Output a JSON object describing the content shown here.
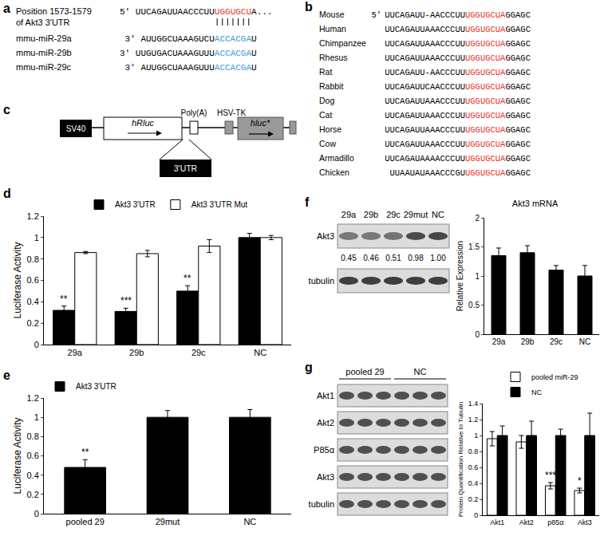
{
  "chart_data": [
    {
      "panel": "d",
      "type": "bar",
      "categories": [
        "29a",
        "29b",
        "29c",
        "NC"
      ],
      "series": [
        {
          "name": "Akt3 3'UTR",
          "color": "#000000",
          "values": [
            0.32,
            0.31,
            0.5,
            1.0
          ],
          "errors": [
            0.04,
            0.03,
            0.05,
            0.04
          ]
        },
        {
          "name": "Akt3 3'UTR Mut",
          "color": "#ffffff",
          "values": [
            0.86,
            0.85,
            0.92,
            1.0
          ],
          "errors": [
            0.01,
            0.03,
            0.06,
            0.02
          ]
        }
      ],
      "y_label": "Luciferase Activity",
      "ylim": [
        0,
        1.2
      ],
      "yticks": [
        0,
        0.2,
        0.4,
        0.6,
        0.8,
        1,
        1.2
      ],
      "grid": false,
      "legend": "top",
      "annotations": [
        {
          "category": "29a",
          "series": "Akt3 3'UTR",
          "text": "**"
        },
        {
          "category": "29b",
          "series": "Akt3 3'UTR",
          "text": "***"
        },
        {
          "category": "29c",
          "series": "Akt3 3'UTR",
          "text": "**"
        }
      ]
    },
    {
      "panel": "e",
      "type": "bar",
      "categories": [
        "pooled 29",
        "29mut",
        "NC"
      ],
      "series": [
        {
          "name": "Akt3 3'UTR",
          "color": "#000000",
          "values": [
            0.48,
            1.0,
            1.0
          ],
          "errors": [
            0.08,
            0.07,
            0.08
          ]
        }
      ],
      "y_label": "Luciferase Activity",
      "ylim": [
        0,
        1.2
      ],
      "yticks": [
        0,
        0.2,
        0.4,
        0.6,
        0.8,
        1,
        1.2
      ],
      "grid": false,
      "legend": "top left",
      "annotations": [
        {
          "category": "pooled 29",
          "series": "Akt3 3'UTR",
          "text": "**"
        }
      ]
    },
    {
      "type": "bar",
      "title": "Akt3 mRNA",
      "categories": [
        "29a",
        "29b",
        "29c",
        "NC"
      ],
      "color": "#000000",
      "values": [
        1.35,
        1.4,
        1.1,
        1.0
      ],
      "errors": [
        0.13,
        0.12,
        0.08,
        0.18
      ],
      "y_label": "Relative Expression",
      "ylim": [
        0,
        2
      ],
      "yticks": [
        0,
        0.5,
        1,
        1.5,
        2
      ],
      "grid": false
    },
    {
      "type": "bar",
      "categories": [
        "Akt1",
        "Akt2",
        "p85α",
        "Akt3"
      ],
      "series": [
        {
          "name": "pooled miR-29",
          "color": "#ffffff",
          "values": [
            0.96,
            0.92,
            0.37,
            0.31
          ],
          "errors": [
            0.09,
            0.08,
            0.04,
            0.03
          ]
        },
        {
          "name": "NC",
          "color": "#000000",
          "values": [
            1.0,
            1.0,
            1.0,
            1.0
          ],
          "errors": [
            0.12,
            0.18,
            0.08,
            0.28
          ]
        }
      ],
      "y_label": "Protein Quantification Relative to Tubulin",
      "ylim": [
        0,
        1.4
      ],
      "yticks": [
        0,
        0.2,
        0.4,
        0.6,
        0.8,
        1,
        1.2,
        1.4
      ],
      "grid": false,
      "legend": "top",
      "annotations": [
        {
          "category": "p85α",
          "series": "pooled miR-29",
          "text": "***"
        },
        {
          "category": "Akt3",
          "series": "pooled miR-29",
          "text": "*"
        }
      ]
    }
  ],
  "diagrams": {
    "a": {
      "panel": "a",
      "label": [
        "Position 1573-1579",
        "of Akt3 3'UTR"
      ],
      "target": {
        "left": "5' UUCAGAUUAACCCUU",
        "site": "UGGUGCU",
        "right": "A..."
      },
      "mirnas": [
        {
          "name": "mmu-miR-29a",
          "left": "3' AUUGGCUAAAGUCU",
          "site": "ACCACGA",
          "right": "U"
        },
        {
          "name": "mmu-miR-29b",
          "left": "3' UUGUGACUAAAGUUU",
          "site": "ACCACGA",
          "right": "U"
        },
        {
          "name": "mmu-miR-29c",
          "left": "3' AUUGGCUAAAGUUU",
          "site": "ACCACGA",
          "right": "U"
        }
      ]
    },
    "b": {
      "panel": "b",
      "rows": [
        {
          "species": "Mouse",
          "prefix": "5'",
          "left": "UUCAGAUU-AACCCUU",
          "site": "UGGUGCUA",
          "right": "GGAGC"
        },
        {
          "species": "Human",
          "left": "UUCAGAUUAAACCCUU",
          "site": "UGGUGCUA",
          "right": "GGAGC"
        },
        {
          "species": "Chimpanzee",
          "left": "UUCAGAUUAAACCCUU",
          "site": "UGGUGCUA",
          "right": "GGAGC"
        },
        {
          "species": "Rhesus",
          "left": "UUCAGAUUAAACCCUU",
          "site": "UGGUGCUA",
          "right": "GGAGC"
        },
        {
          "species": "Rat",
          "left": "UUCAGAUU-AACCCUU",
          "site": "UGGUGCUA",
          "right": "GGAGC"
        },
        {
          "species": "Rabbit",
          "left": "UUCAGAUUCAACCCUU",
          "site": "UGGUGCUA",
          "right": "GGAGC"
        },
        {
          "species": "Dog",
          "left": "UUCAGAUUAAACCCUU",
          "site": "UGGUGCUA",
          "right": "GGAGC"
        },
        {
          "species": "Cat",
          "left": "UUCAGAUUAAACCCUU",
          "site": "UGGUGCUA",
          "right": "GGAGC"
        },
        {
          "species": "Horse",
          "left": "UUCAGAUUAAACCCUU",
          "site": "UGGUGCUA",
          "right": "GGAGC"
        },
        {
          "species": "Cow",
          "left": "UUCAGAUUAAACCCUU",
          "site": "UGGUGCUA",
          "right": "GGAGC"
        },
        {
          "species": "Armadillo",
          "left": "UUCAGAUAAAACCCUU",
          "site": "UGGUGCUA",
          "right": "GGAGC"
        },
        {
          "species": "Chicken",
          "left": "UUAAUAUAAACCCGU",
          "site": "UGGUGCUA",
          "right": "GGAGC"
        }
      ]
    },
    "c": {
      "panel": "c",
      "labels": [
        "SV40",
        "hRluc",
        "Poly(A)",
        "HSV-TK",
        "hluc*"
      ],
      "insert": "3'UTR"
    }
  },
  "blots": [
    {
      "panel": "f",
      "lanes": [
        "29a",
        "29b",
        "29c",
        "29mut",
        "NC"
      ],
      "rows": [
        "Akt3",
        "tubulin"
      ],
      "quantification": {
        "row": "Akt3",
        "values": [
          0.45,
          0.46,
          0.51,
          0.98,
          1.0
        ],
        "value_labels": [
          "0.45",
          "0.46",
          "0.51",
          "0.98",
          "1.00"
        ]
      }
    },
    {
      "panel": "g",
      "groups": [
        {
          "label": "pooled 29",
          "lanes": 3
        },
        {
          "label": "NC",
          "lanes": 3
        }
      ],
      "rows": [
        "Akt1",
        "Akt2",
        "P85α",
        "Akt3",
        "tubulin"
      ]
    }
  ]
}
